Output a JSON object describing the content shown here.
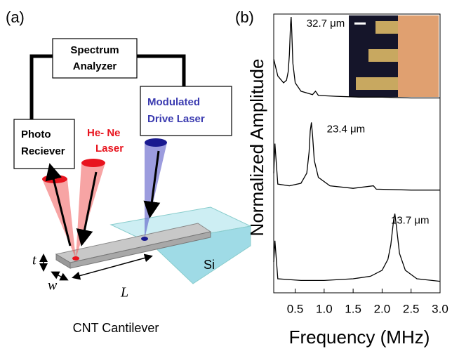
{
  "diagram": {
    "panel": "(a)",
    "analyzer": [
      "Spectrum",
      "Analyzer"
    ],
    "receiver": [
      "Photo",
      "Reciever"
    ],
    "hene": [
      "He- Ne",
      "Laser"
    ],
    "drive": [
      "Modulated",
      "Drive Laser"
    ],
    "si": "Si",
    "t": "t",
    "w": "w",
    "l": "L",
    "caption": "CNT Cantilever"
  },
  "panel_b": "(b)",
  "chart_data": [
    {
      "type": "line",
      "ylabel": "Normalized Amplitude",
      "xlim": [
        0.13,
        3.0
      ],
      "ylim": [
        0,
        1
      ],
      "x": [
        0.13,
        0.2,
        0.3,
        0.35,
        0.38,
        0.4,
        0.42,
        0.43,
        0.44,
        0.46,
        0.5,
        0.6,
        0.8,
        0.85,
        0.9,
        1.2,
        1.6,
        2.0,
        2.5,
        3.0
      ],
      "series": [
        {
          "name": "32.7 μm",
          "color": "#000000",
          "values": [
            0.5,
            0.3,
            0.22,
            0.25,
            0.35,
            0.55,
            0.9,
            1.0,
            0.85,
            0.45,
            0.22,
            0.12,
            0.08,
            0.12,
            0.07,
            0.06,
            0.05,
            0.05,
            0.04,
            0.04
          ]
        }
      ]
    },
    {
      "type": "line",
      "xlim": [
        0.13,
        3.0
      ],
      "ylim": [
        0,
        1
      ],
      "x": [
        0.13,
        0.15,
        0.2,
        0.4,
        0.6,
        0.7,
        0.74,
        0.76,
        0.78,
        0.8,
        0.83,
        0.9,
        1.1,
        1.5,
        1.85,
        1.9,
        2.5,
        3.0
      ],
      "series": [
        {
          "name": "23.4 μm",
          "color": "#000000",
          "values": [
            0.25,
            0.6,
            0.12,
            0.1,
            0.13,
            0.25,
            0.5,
            0.75,
            0.85,
            0.7,
            0.4,
            0.2,
            0.1,
            0.07,
            0.1,
            0.06,
            0.05,
            0.05
          ]
        }
      ]
    },
    {
      "type": "line",
      "xlabel": "Frequency (MHz)",
      "xlim": [
        0.13,
        3.0
      ],
      "ylim": [
        0,
        1
      ],
      "xticks": [
        0.5,
        1.0,
        1.5,
        2.0,
        2.5,
        3.0
      ],
      "x": [
        0.13,
        0.15,
        0.2,
        0.6,
        1.0,
        1.5,
        1.8,
        2.0,
        2.1,
        2.15,
        2.2,
        2.22,
        2.25,
        2.3,
        2.4,
        2.6,
        3.0
      ],
      "series": [
        {
          "name": "13.7 μm",
          "color": "#000000",
          "values": [
            0.3,
            0.55,
            0.1,
            0.08,
            0.08,
            0.1,
            0.13,
            0.2,
            0.33,
            0.5,
            0.8,
            0.87,
            0.7,
            0.4,
            0.2,
            0.1,
            0.07
          ]
        }
      ]
    }
  ]
}
